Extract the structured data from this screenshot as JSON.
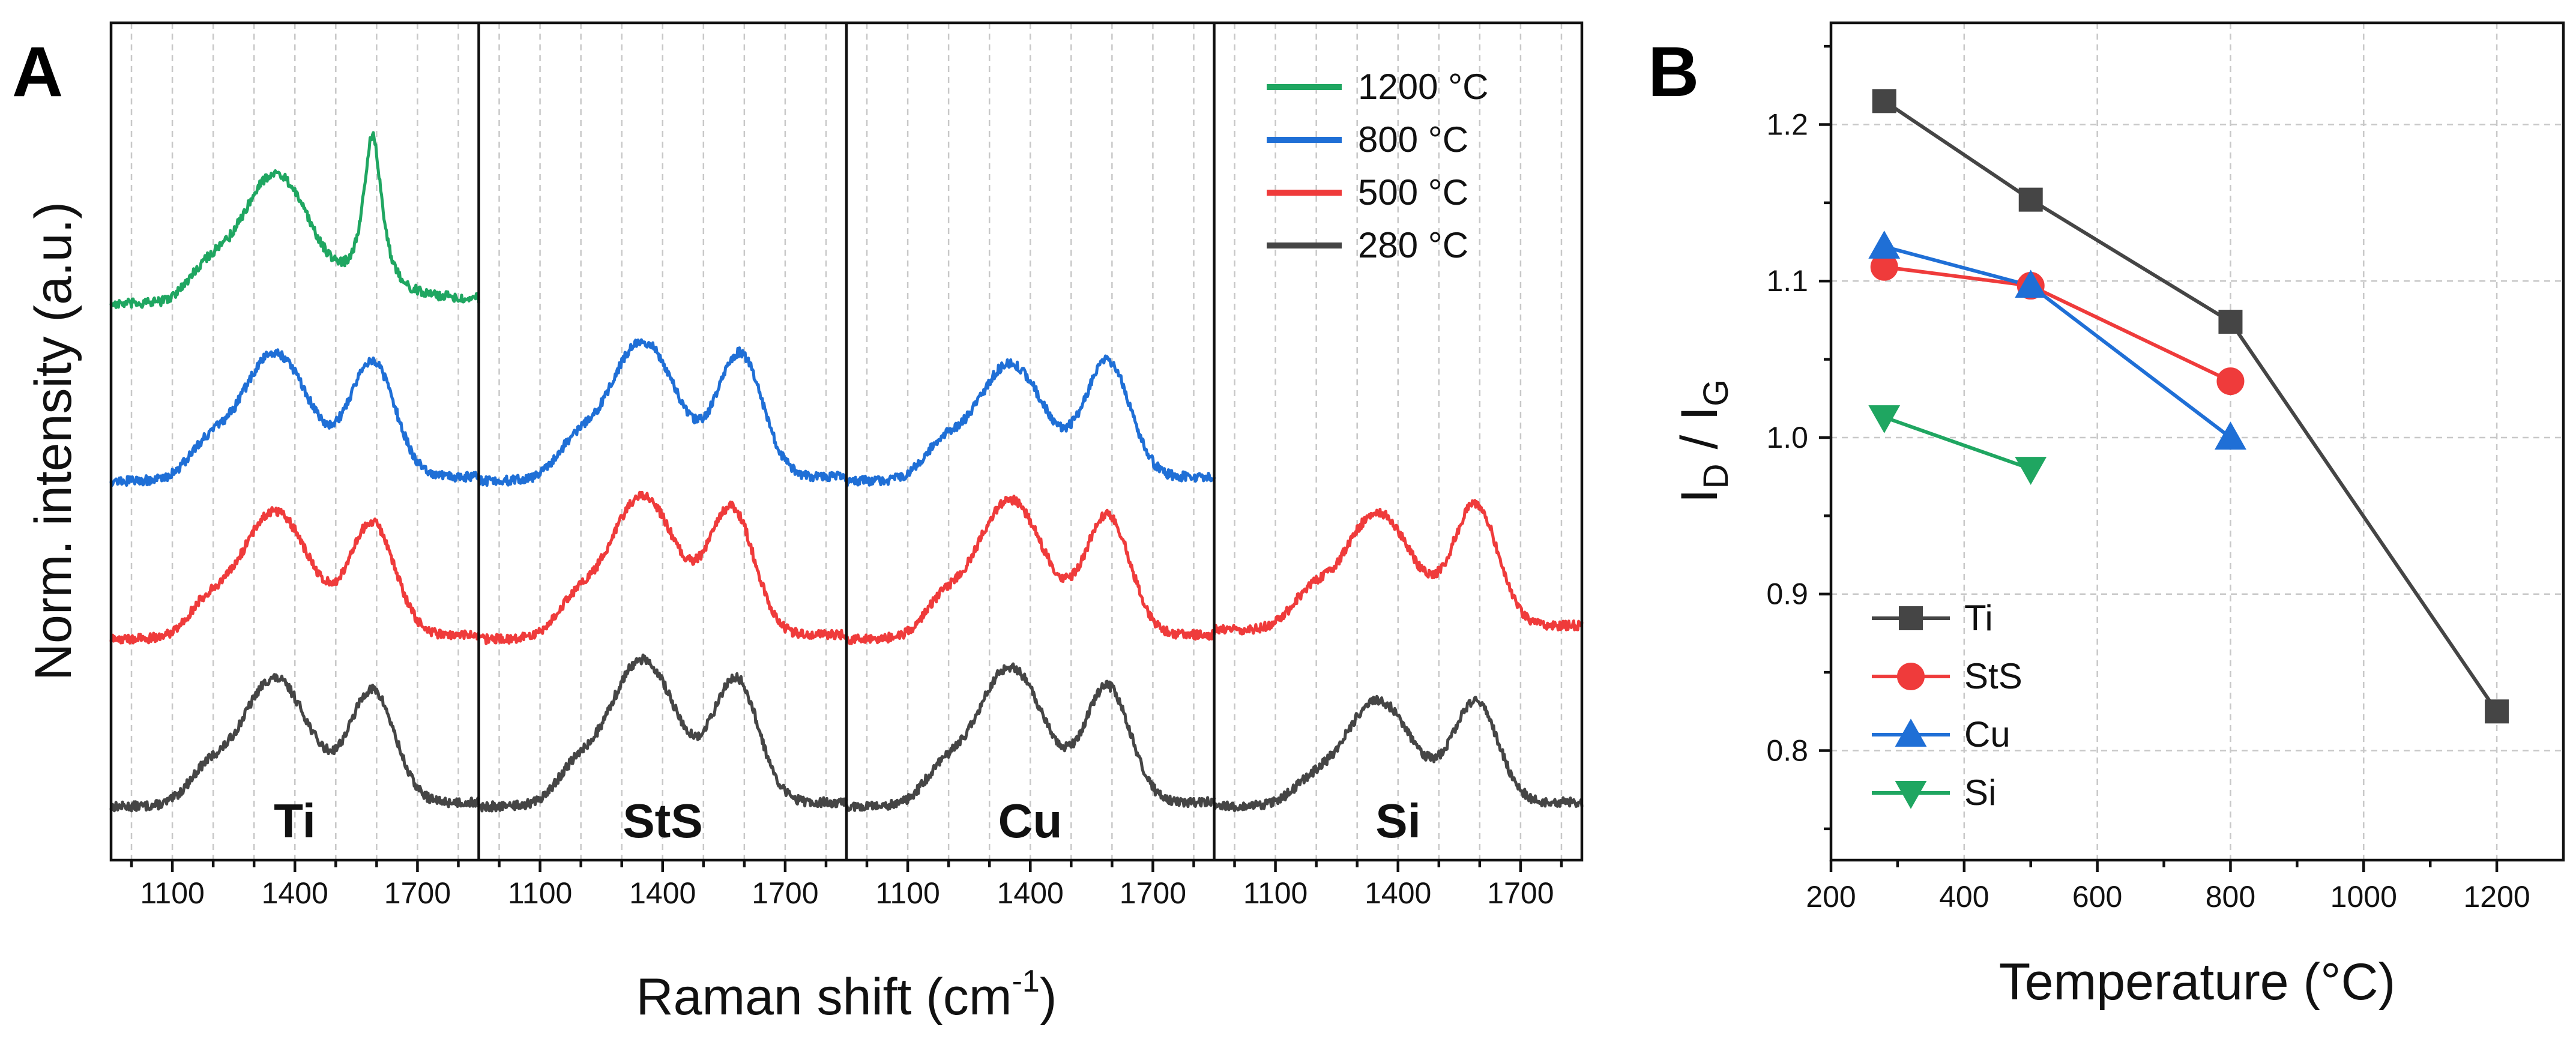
{
  "panel_a": {
    "letter": "A",
    "ylabel": "Norm. intensity (a.u.)",
    "xlabel_main": "Raman shift (cm",
    "xlabel_sup": "-1",
    "xlabel_close": ")",
    "substrate_labels": [
      "Ti",
      "StS",
      "Cu",
      "Si"
    ],
    "tick_labels": [
      "1100",
      "1400",
      "1700"
    ]
  },
  "panel_b": {
    "letter": "B",
    "ylabel_main": "I",
    "ylabel_sub1": "D",
    "ylabel_mid": " / I",
    "ylabel_sub2": "G",
    "xlabel": "Temperature (°C)"
  },
  "chart_data": [
    {
      "type": "line",
      "title": "",
      "panel": "A",
      "xlabel": "Raman shift (cm-1)",
      "ylabel": "Norm. intensity (a.u.)",
      "xlim": [
        950,
        1850
      ],
      "x_ticks": [
        1100,
        1400,
        1700
      ],
      "substrates": [
        "Ti",
        "StS",
        "Cu",
        "Si"
      ],
      "legend": {
        "position": "top-right",
        "entries": [
          {
            "label": "1200 °C",
            "color": "#1fa661"
          },
          {
            "label": "800 °C",
            "color": "#1f6fd6"
          },
          {
            "label": "500 °C",
            "color": "#ef3b3b"
          },
          {
            "label": "280 °C",
            "color": "#454545"
          }
        ]
      },
      "series": [
        {
          "substrate": "Ti",
          "temperature": "280 °C",
          "color": "#454545",
          "offset": 0.0,
          "D_peak": [
            1350,
            0.68
          ],
          "G_peak": [
            1590,
            0.6
          ],
          "baseline": 0.0
        },
        {
          "substrate": "Ti",
          "temperature": "500 °C",
          "color": "#ef3b3b",
          "offset": 0.9,
          "D_peak": [
            1350,
            0.68
          ],
          "G_peak": [
            1590,
            0.6
          ],
          "baseline": 0.0
        },
        {
          "substrate": "Ti",
          "temperature": "800 °C",
          "color": "#1f6fd6",
          "offset": 1.75,
          "D_peak": [
            1350,
            0.68
          ],
          "G_peak": [
            1590,
            0.62
          ],
          "baseline": 0.0
        },
        {
          "substrate": "Ti",
          "temperature": "1200 °C",
          "color": "#1fa661",
          "offset": 2.7,
          "D_peak": [
            1350,
            0.68
          ],
          "G_peak": [
            1590,
            0.88
          ],
          "baseline": 0.0
        },
        {
          "substrate": "StS",
          "temperature": "280 °C",
          "color": "#454545",
          "offset": 0.0,
          "D_peak": [
            1350,
            0.78
          ],
          "G_peak": [
            1580,
            0.66
          ],
          "baseline": 0.0
        },
        {
          "substrate": "StS",
          "temperature": "500 °C",
          "color": "#ef3b3b",
          "offset": 0.9,
          "D_peak": [
            1350,
            0.76
          ],
          "G_peak": [
            1570,
            0.67
          ],
          "baseline": 0.0
        },
        {
          "substrate": "StS",
          "temperature": "800 °C",
          "color": "#1f6fd6",
          "offset": 1.75,
          "D_peak": [
            1350,
            0.74
          ],
          "G_peak": [
            1590,
            0.66
          ],
          "baseline": 0.0
        },
        {
          "substrate": "Cu",
          "temperature": "280 °C",
          "color": "#454545",
          "offset": 0.0,
          "D_peak": [
            1350,
            0.74
          ],
          "G_peak": [
            1590,
            0.62
          ],
          "baseline": 0.0
        },
        {
          "substrate": "Cu",
          "temperature": "500 °C",
          "color": "#ef3b3b",
          "offset": 0.9,
          "D_peak": [
            1350,
            0.74
          ],
          "G_peak": [
            1590,
            0.64
          ],
          "baseline": 0.0
        },
        {
          "substrate": "Cu",
          "temperature": "800 °C",
          "color": "#1f6fd6",
          "offset": 1.75,
          "D_peak": [
            1350,
            0.62
          ],
          "G_peak": [
            1590,
            0.62
          ],
          "baseline": 0.0
        },
        {
          "substrate": "Si",
          "temperature": "280 °C",
          "color": "#454545",
          "offset": 0.0,
          "D_peak": [
            1350,
            0.56
          ],
          "G_peak": [
            1590,
            0.54
          ],
          "baseline": 0.0
        },
        {
          "substrate": "Si",
          "temperature": "500 °C",
          "color": "#ef3b3b",
          "offset": 0.95,
          "D_peak": [
            1350,
            0.62
          ],
          "G_peak": [
            1590,
            0.65
          ],
          "baseline": 0.0
        }
      ]
    },
    {
      "type": "line",
      "title": "",
      "panel": "B",
      "xlabel": "Temperature (°C)",
      "ylabel": "ID / IG",
      "xlim": [
        200,
        1300
      ],
      "ylim": [
        0.73,
        1.265
      ],
      "x_ticks": [
        200,
        400,
        600,
        800,
        1000,
        1200
      ],
      "y_ticks": [
        0.8,
        0.9,
        1.0,
        1.1,
        1.2
      ],
      "grid": true,
      "legend_position": "bottom-left",
      "series": [
        {
          "name": "Ti",
          "color": "#454545",
          "marker": "square",
          "x": [
            280,
            500,
            800,
            1200
          ],
          "y": [
            1.215,
            1.152,
            1.074,
            0.825
          ]
        },
        {
          "name": "StS",
          "color": "#ef3b3b",
          "marker": "circle",
          "x": [
            280,
            500,
            800
          ],
          "y": [
            1.109,
            1.097,
            1.036
          ]
        },
        {
          "name": "Cu",
          "color": "#1f6fd6",
          "marker": "triangle-up",
          "x": [
            280,
            500,
            800
          ],
          "y": [
            1.122,
            1.097,
            1.0
          ]
        },
        {
          "name": "Si",
          "color": "#1fa661",
          "marker": "triangle-down",
          "x": [
            280,
            500
          ],
          "y": [
            1.013,
            0.98
          ]
        }
      ]
    }
  ]
}
